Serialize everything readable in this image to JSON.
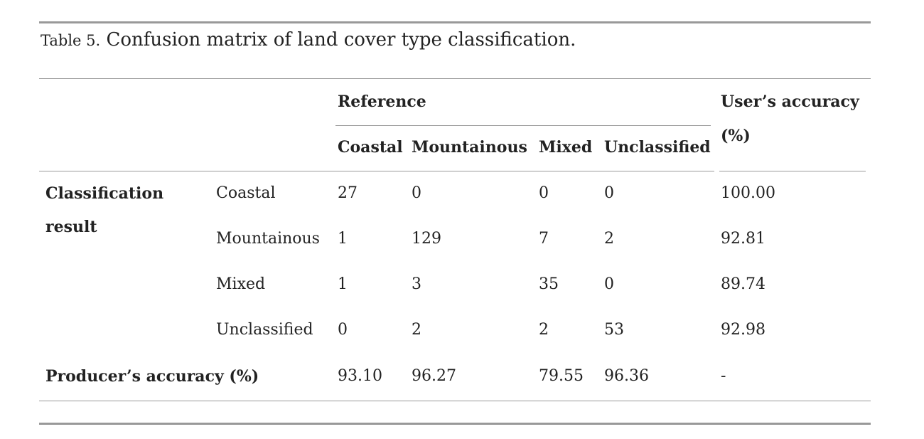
{
  "caption": {
    "label": "Table 5.",
    "text": "Confusion matrix of land cover type classification."
  },
  "header": {
    "reference": "Reference",
    "users_accuracy": "User’s accuracy",
    "users_accuracy_unit": "(%)",
    "columns": [
      "Coastal",
      "Mountainous",
      "Mixed",
      "Unclassified"
    ]
  },
  "row_group_label_line1": "Classification",
  "row_group_label_line2": "result",
  "rows": [
    {
      "label": "Coastal",
      "values": [
        "27",
        "0",
        "0",
        "0"
      ],
      "users_accuracy": "100.00"
    },
    {
      "label": "Mountainous",
      "values": [
        "1",
        "129",
        "7",
        "2"
      ],
      "users_accuracy": "92.81"
    },
    {
      "label": "Mixed",
      "values": [
        "1",
        "3",
        "35",
        "0"
      ],
      "users_accuracy": "89.74"
    },
    {
      "label": "Unclassified",
      "values": [
        "0",
        "2",
        "2",
        "53"
      ],
      "users_accuracy": "92.98"
    }
  ],
  "producers": {
    "label": "Producer’s accuracy (%)",
    "values": [
      "93.10",
      "96.27",
      "79.55",
      "96.36"
    ],
    "users_accuracy": "-"
  }
}
